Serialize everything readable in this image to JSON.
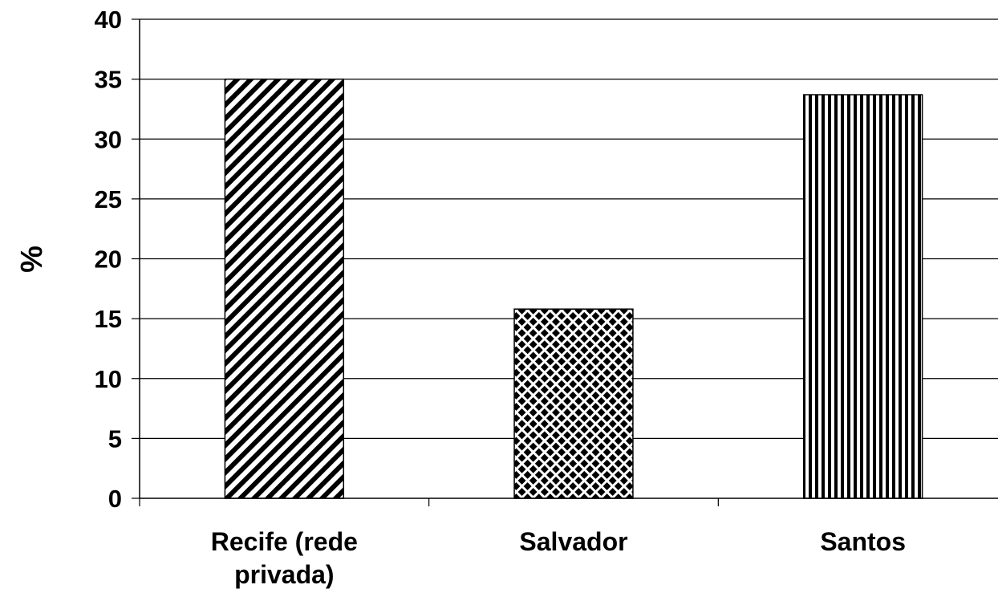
{
  "chart_data": {
    "type": "bar",
    "title": "",
    "xlabel": "",
    "ylabel": "%",
    "ylim": [
      0,
      40
    ],
    "yticks": [
      0,
      5,
      10,
      15,
      20,
      25,
      30,
      35,
      40
    ],
    "grid": true,
    "legend": "none",
    "categories": [
      [
        "Recife (rede",
        "privada)"
      ],
      [
        "Salvador"
      ],
      [
        "Santos"
      ]
    ],
    "values": [
      35,
      15.8,
      33.7
    ],
    "patterns": [
      "diagonal-stripes",
      "crosshatch",
      "vertical-stripes"
    ],
    "colors": {
      "bar_fill": "#000000",
      "background": "#ffffff",
      "grid": "#000000"
    }
  }
}
